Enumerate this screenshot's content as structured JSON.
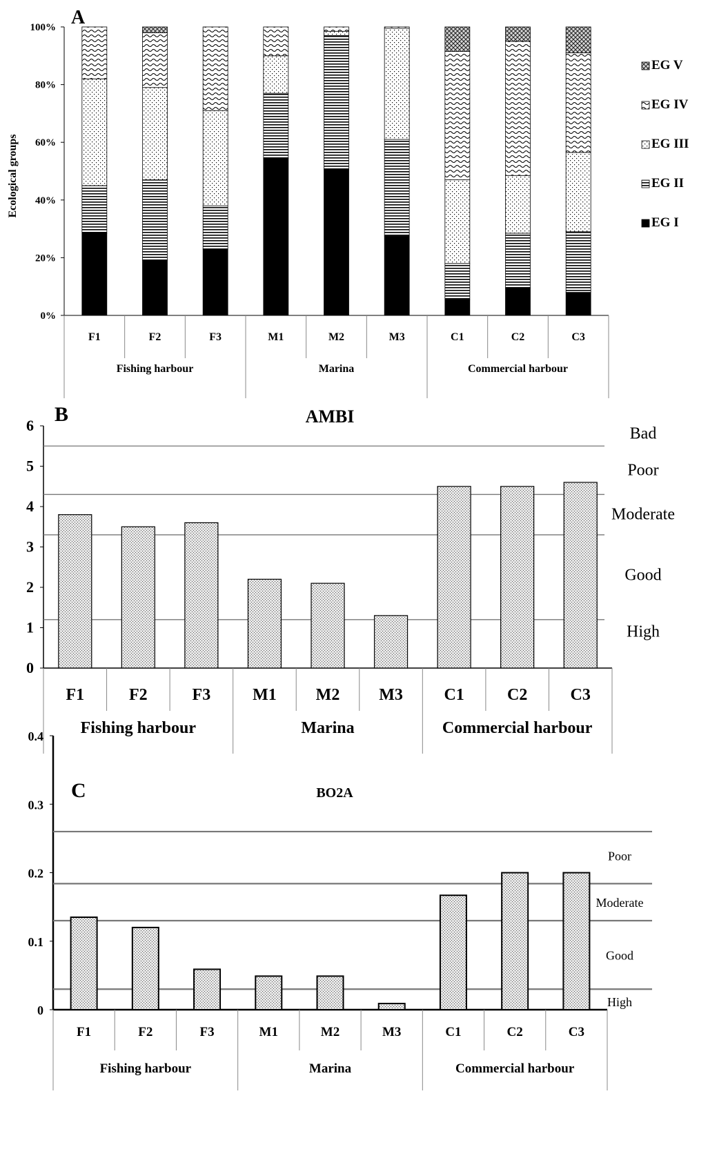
{
  "chart_data": [
    {
      "panel": "A",
      "type": "bar",
      "stacked": true,
      "title": "",
      "ylabel": "Ecological groups",
      "ylim": [
        0,
        100
      ],
      "yticks": [
        "0%",
        "20%",
        "40%",
        "60%",
        "80%",
        "100%"
      ],
      "categories": [
        "F1",
        "F2",
        "F3",
        "M1",
        "M2",
        "M3",
        "C1",
        "C2",
        "C3"
      ],
      "groups": [
        {
          "label": "Fishing harbour",
          "count": 3
        },
        {
          "label": "Marina",
          "count": 3
        },
        {
          "label": "Commercial harbour",
          "count": 3
        }
      ],
      "legend_position": "right",
      "series": [
        {
          "name": "EG I",
          "pattern": "solid",
          "values": [
            28.5,
            19,
            23,
            54.5,
            50.5,
            27.5,
            5.5,
            9.5,
            8
          ]
        },
        {
          "name": "EG II",
          "pattern": "hlines",
          "values": [
            16.5,
            28,
            15,
            22.5,
            46.5,
            33.5,
            12.5,
            19,
            21
          ]
        },
        {
          "name": "EG III",
          "pattern": "dots",
          "values": [
            37,
            32,
            33,
            13,
            1.5,
            38.5,
            29,
            20,
            27.5
          ]
        },
        {
          "name": "EG IV",
          "pattern": "waves",
          "values": [
            18,
            19,
            29,
            10,
            1.5,
            0.5,
            44.5,
            46.5,
            34.5
          ]
        },
        {
          "name": "EG V",
          "pattern": "crosshatch",
          "values": [
            0,
            2,
            0,
            0,
            0,
            0,
            8.5,
            5,
            9
          ]
        }
      ]
    },
    {
      "panel": "B",
      "type": "bar",
      "title": "AMBI",
      "xlabel": "",
      "ylabel": "",
      "ylim": [
        0,
        6
      ],
      "yticks": [
        "0",
        "1",
        "2",
        "3",
        "4",
        "5",
        "6"
      ],
      "categories": [
        "F1",
        "F2",
        "F3",
        "M1",
        "M2",
        "M3",
        "C1",
        "C2",
        "C3"
      ],
      "groups": [
        {
          "label": "Fishing harbour",
          "count": 3
        },
        {
          "label": "Marina",
          "count": 3
        },
        {
          "label": "Commercial harbour",
          "count": 3
        }
      ],
      "values": [
        3.8,
        3.5,
        3.6,
        2.2,
        2.1,
        1.3,
        4.5,
        4.5,
        4.6
      ],
      "thresholds": [
        1.2,
        3.3,
        4.3,
        5.5
      ],
      "status_labels": [
        {
          "label": "Bad",
          "y": 5.8
        },
        {
          "label": "Poor",
          "y": 4.9
        },
        {
          "label": "Moderate",
          "y": 3.8
        },
        {
          "label": "Good",
          "y": 2.3
        },
        {
          "label": "High",
          "y": 0.9
        }
      ]
    },
    {
      "panel": "C",
      "type": "bar",
      "title": "BO2A",
      "xlabel": "",
      "ylabel": "",
      "ylim": [
        0,
        0.4
      ],
      "yticks": [
        "0",
        "0.1",
        "0.2",
        "0.3",
        "0.4"
      ],
      "categories": [
        "F1",
        "F2",
        "F3",
        "M1",
        "M2",
        "M3",
        "C1",
        "C2",
        "C3"
      ],
      "groups": [
        {
          "label": "Fishing harbour",
          "count": 3
        },
        {
          "label": "Marina",
          "count": 3
        },
        {
          "label": "Commercial harbour",
          "count": 3
        }
      ],
      "values": [
        0.135,
        0.12,
        0.059,
        0.049,
        0.049,
        0.009,
        0.167,
        0.2,
        0.2
      ],
      "thresholds": [
        0.03,
        0.13,
        0.184,
        0.26
      ],
      "status_labels": [
        {
          "label": "Poor",
          "y": 0.225
        },
        {
          "label": "Moderate",
          "y": 0.157
        },
        {
          "label": "Good",
          "y": 0.08
        },
        {
          "label": "High",
          "y": 0.012
        }
      ]
    }
  ]
}
